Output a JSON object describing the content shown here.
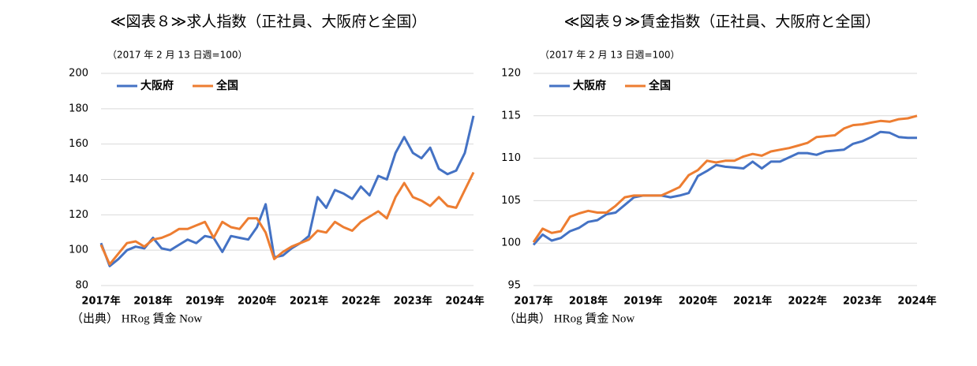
{
  "chart_data": [
    {
      "type": "line",
      "title": "≪図表８≫求人指数（正社員、大阪府と全国）",
      "subtitle": "（2017 年 2 月 13 日週=100）",
      "source": "（出典） HRog 賃金 Now",
      "categories": [
        "2017年",
        null,
        null,
        null,
        null,
        null,
        "2018年",
        null,
        null,
        null,
        null,
        null,
        "2019年",
        null,
        null,
        null,
        null,
        null,
        "2020年",
        null,
        null,
        null,
        null,
        null,
        "2021年",
        null,
        null,
        null,
        null,
        null,
        "2022年",
        null,
        null,
        null,
        null,
        null,
        "2023年",
        null,
        null,
        null,
        null,
        null,
        "2024年",
        null
      ],
      "series": [
        {
          "name": "大阪府",
          "color": "#4472c4",
          "values": [
            104,
            91,
            95,
            100,
            102,
            101,
            107,
            101,
            100,
            103,
            106,
            104,
            108,
            107,
            99,
            108,
            107,
            106,
            113,
            126,
            96,
            97,
            101,
            104,
            108,
            130,
            124,
            134,
            132,
            129,
            136,
            131,
            142,
            140,
            155,
            164,
            155,
            152,
            158,
            146,
            143,
            145,
            155,
            176
          ]
        },
        {
          "name": "全国",
          "color": "#ed7d31",
          "values": [
            103,
            92,
            98,
            104,
            105,
            102,
            106,
            107,
            109,
            112,
            112,
            114,
            116,
            107,
            116,
            113,
            112,
            118,
            118,
            110,
            95,
            99,
            102,
            104,
            106,
            111,
            110,
            116,
            113,
            111,
            116,
            119,
            122,
            118,
            130,
            138,
            130,
            128,
            125,
            130,
            125,
            124,
            134,
            144
          ]
        }
      ],
      "ylim": [
        80,
        200
      ],
      "yticks": [
        80,
        100,
        120,
        140,
        160,
        180,
        200
      ],
      "grid": true,
      "legend": "top-left"
    },
    {
      "type": "line",
      "title": "≪図表９≫賃金指数（正社員、大阪府と全国）",
      "subtitle": "（2017 年 2 月 13 日週=100）",
      "source": "（出典） HRog 賃金 Now",
      "categories": [
        "2017年",
        null,
        null,
        null,
        null,
        null,
        "2018年",
        null,
        null,
        null,
        null,
        null,
        "2019年",
        null,
        null,
        null,
        null,
        null,
        "2020年",
        null,
        null,
        null,
        null,
        null,
        "2021年",
        null,
        null,
        null,
        null,
        null,
        "2022年",
        null,
        null,
        null,
        null,
        null,
        "2023年",
        null,
        null,
        null,
        null,
        null,
        "2024年"
      ],
      "series": [
        {
          "name": "大阪府",
          "color": "#4472c4",
          "values": [
            99.8,
            101.0,
            100.3,
            100.6,
            101.4,
            101.8,
            102.5,
            102.7,
            103.4,
            103.6,
            104.5,
            105.4,
            105.6,
            105.6,
            105.6,
            105.4,
            105.6,
            105.9,
            107.9,
            108.5,
            109.2,
            109.0,
            108.9,
            108.8,
            109.6,
            108.8,
            109.6,
            109.6,
            110.1,
            110.6,
            110.6,
            110.4,
            110.8,
            110.9,
            111.0,
            111.7,
            112.0,
            112.5,
            113.1,
            113.0,
            112.5,
            112.4,
            112.4
          ]
        },
        {
          "name": "全国",
          "color": "#ed7d31",
          "values": [
            100.1,
            101.7,
            101.2,
            101.4,
            103.1,
            103.5,
            103.8,
            103.6,
            103.6,
            104.4,
            105.4,
            105.6,
            105.6,
            105.6,
            105.6,
            106.1,
            106.6,
            108.0,
            108.6,
            109.7,
            109.5,
            109.7,
            109.7,
            110.2,
            110.5,
            110.3,
            110.8,
            111.0,
            111.2,
            111.5,
            111.8,
            112.5,
            112.6,
            112.7,
            113.5,
            113.9,
            114.0,
            114.2,
            114.4,
            114.3,
            114.6,
            114.7,
            115.0
          ]
        }
      ],
      "ylim": [
        95,
        120
      ],
      "yticks": [
        95,
        100,
        105,
        110,
        115,
        120
      ],
      "grid": true,
      "legend": "top-left"
    }
  ]
}
